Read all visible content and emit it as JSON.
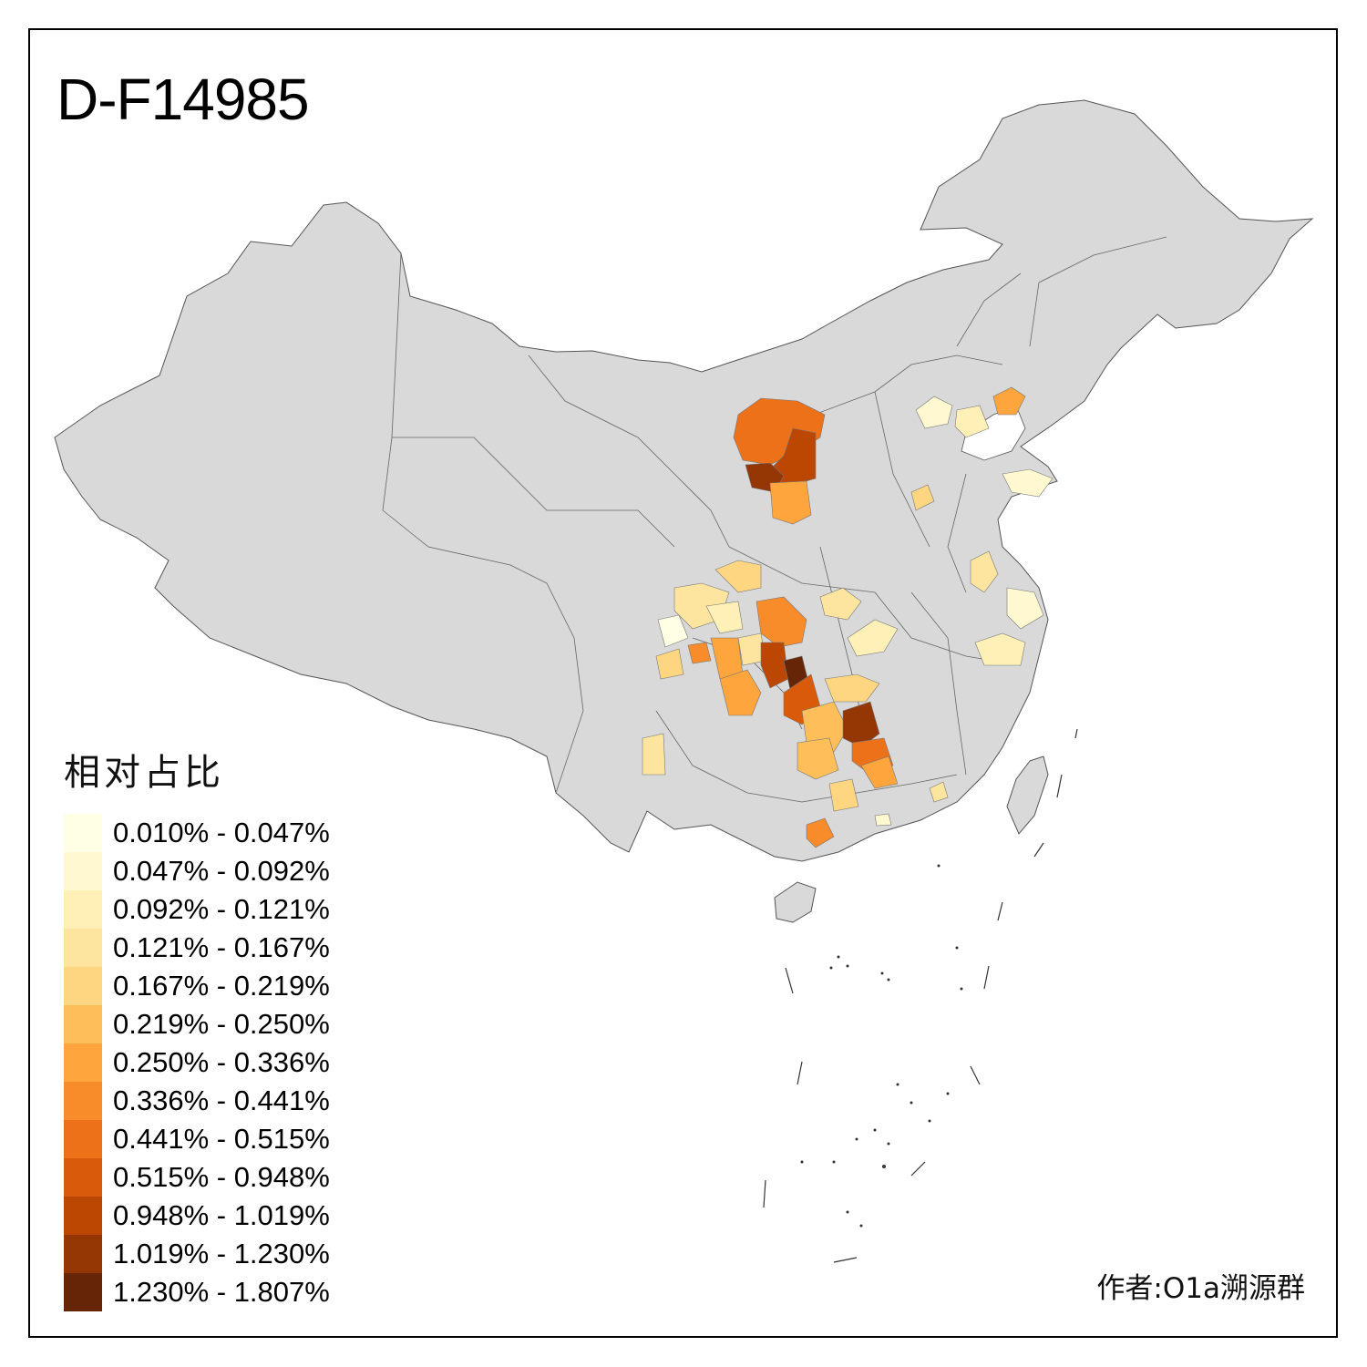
{
  "map": {
    "title": "D-F14985",
    "credit": "作者:O1a溯源群",
    "base_color": "#d9d9d9",
    "legend": {
      "title": "相对占比",
      "items": [
        {
          "label": "0.010% - 0.047%",
          "color": "#ffffe5"
        },
        {
          "label": "0.047% - 0.092%",
          "color": "#fff8d0"
        },
        {
          "label": "0.092% - 0.121%",
          "color": "#fff0b8"
        },
        {
          "label": "0.121% - 0.167%",
          "color": "#fee59f"
        },
        {
          "label": "0.167% - 0.219%",
          "color": "#fed580"
        },
        {
          "label": "0.219% - 0.250%",
          "color": "#febf5a"
        },
        {
          "label": "0.250% - 0.336%",
          "color": "#fea53d"
        },
        {
          "label": "0.336% - 0.441%",
          "color": "#f88b2a"
        },
        {
          "label": "0.441% - 0.515%",
          "color": "#ec7119"
        },
        {
          "label": "0.515% - 0.948%",
          "color": "#d95a0b"
        },
        {
          "label": "0.948% - 1.019%",
          "color": "#bb4703"
        },
        {
          "label": "1.019% - 1.230%",
          "color": "#943704"
        },
        {
          "label": "1.230% - 1.807%",
          "color": "#662506"
        }
      ]
    }
  }
}
